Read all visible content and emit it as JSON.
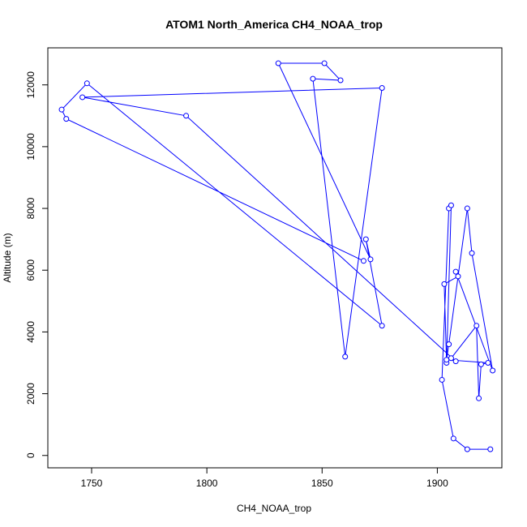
{
  "chart_data": {
    "type": "scatter",
    "title": "ATOM1 North_America CH4_NOAA_trop",
    "xlabel": "CH4_NOAA_trop",
    "ylabel": "Altitude (m)",
    "xlim": [
      1731,
      1928
    ],
    "ylim": [
      -400,
      13200
    ],
    "x_ticks": [
      1750,
      1800,
      1850,
      1900
    ],
    "y_ticks": [
      0,
      2000,
      4000,
      6000,
      8000,
      10000,
      12000
    ],
    "grid": false,
    "legend": "none",
    "marker": "open-circle",
    "color": "#0000ff",
    "series": [
      {
        "x": [
          1923,
          1913,
          1907,
          1902,
          1905,
          1906,
          1904,
          1903,
          1909,
          1908,
          1924,
          1915,
          1913,
          1905,
          1904,
          1922,
          1919,
          1918,
          1917,
          1906,
          1908,
          1791,
          1746,
          1876,
          1860,
          1846,
          1858,
          1851,
          1831,
          1871,
          1869,
          1876,
          1748,
          1737,
          1739,
          1868
        ],
        "y": [
          200,
          200,
          550,
          2450,
          8000,
          8100,
          3000,
          5550,
          5800,
          5950,
          2750,
          6550,
          8000,
          3600,
          3100,
          3000,
          2950,
          1850,
          4200,
          3150,
          3050,
          11000,
          11600,
          11900,
          3200,
          12200,
          12150,
          12700,
          12700,
          6350,
          7000,
          4200,
          12050,
          11200,
          10900,
          6300
        ]
      }
    ]
  }
}
